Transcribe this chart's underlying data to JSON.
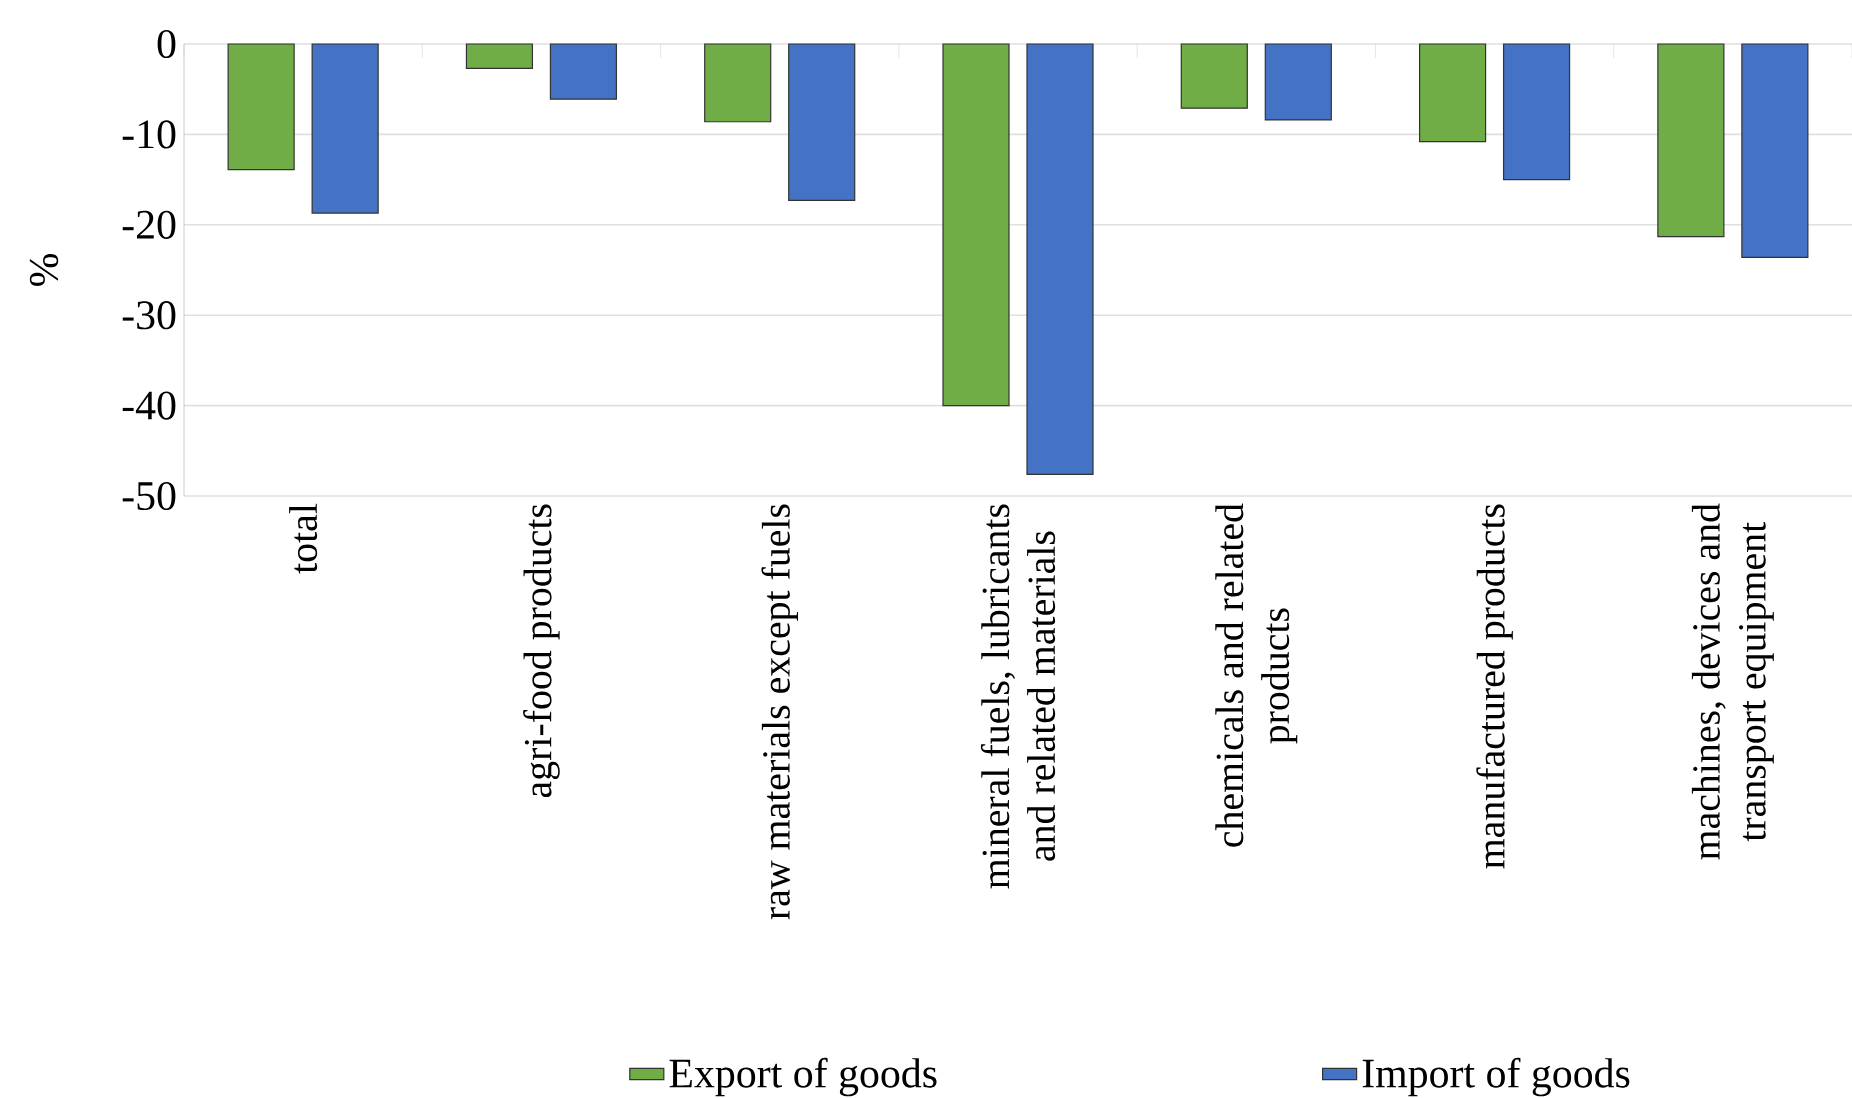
{
  "chart_data": {
    "type": "bar",
    "ylabel": "%",
    "categories": [
      "total",
      "agri-food products",
      "raw materials except fuels",
      "mineral fuels, lubricants and related materials",
      "chemicals and related products",
      "manufactured products",
      "machines, devices and transport equipment"
    ],
    "series": [
      {
        "name": "Export of goods",
        "color": "#70ad47",
        "values": [
          -13.9,
          -2.7,
          -8.6,
          -40,
          -7.1,
          -10.8,
          -21.3
        ]
      },
      {
        "name": "Import of goods",
        "color": "#4472c4",
        "values": [
          -18.7,
          -6.1,
          -17.3,
          -47.6,
          -8.4,
          -15.0,
          -23.6
        ]
      }
    ],
    "ylim": [
      -50,
      0
    ],
    "yticks": [
      -50,
      -40,
      -30,
      -20,
      -10,
      0
    ],
    "grid": "y",
    "legend": "bottom"
  }
}
